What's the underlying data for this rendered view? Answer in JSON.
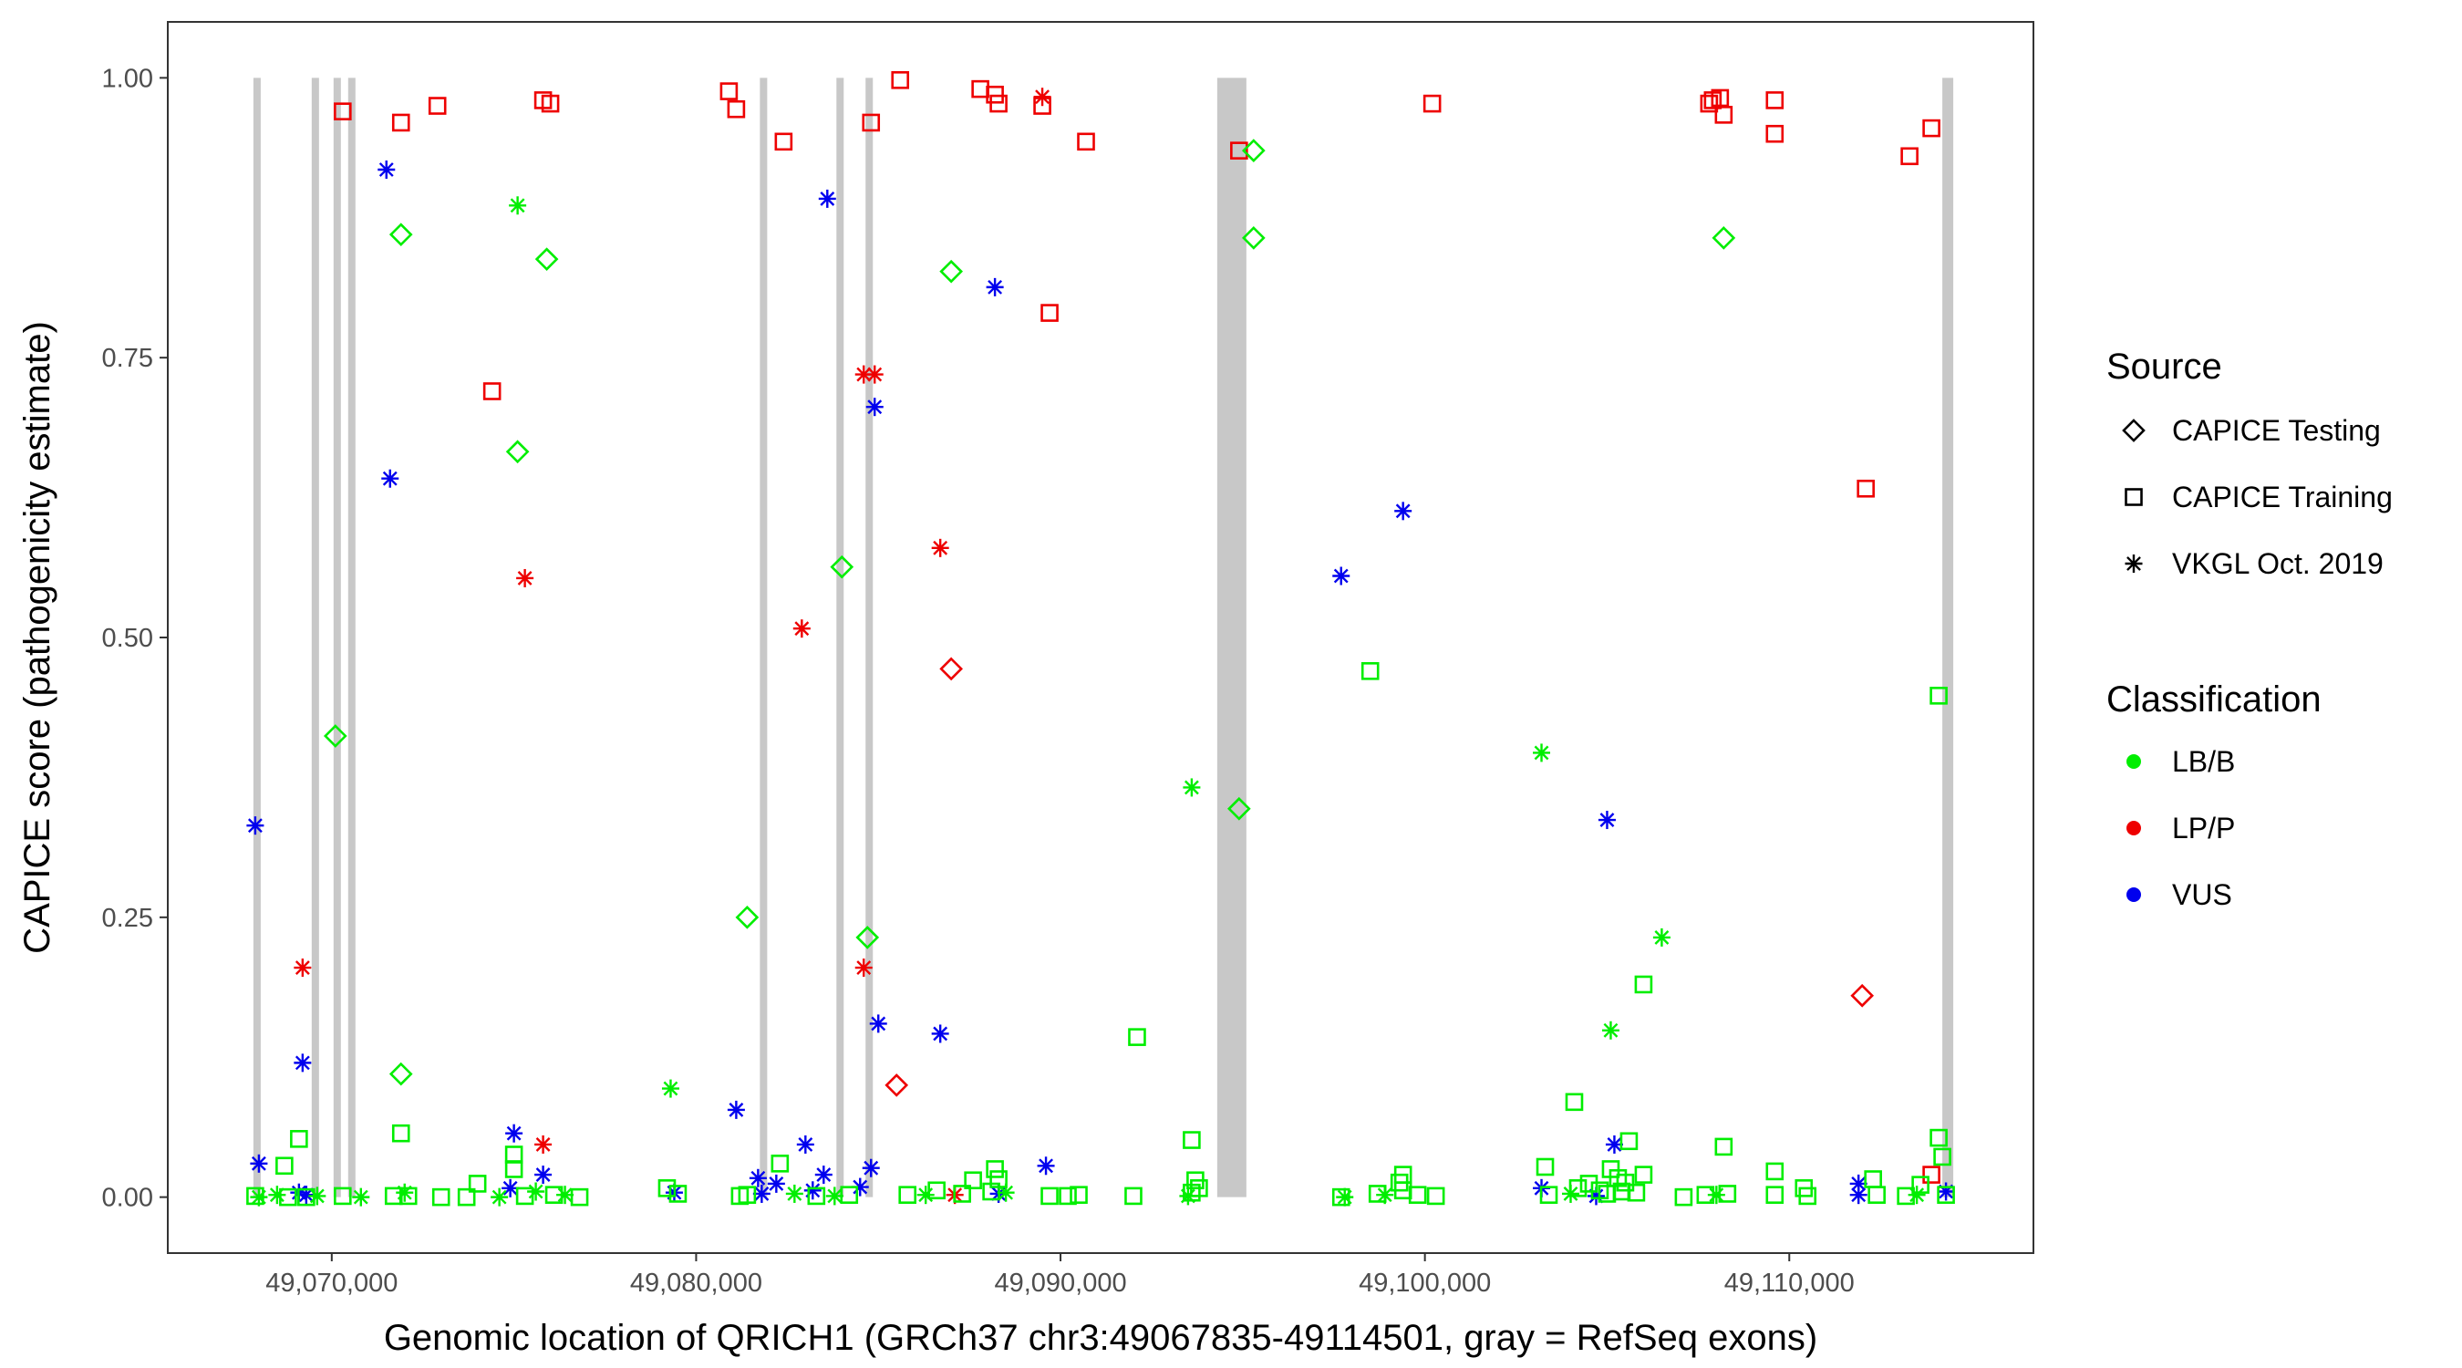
{
  "chart_data": {
    "type": "scatter",
    "xlabel": "Genomic location of QRICH1 (GRCh37 chr3:49067835-49114501, gray = RefSeq exons)",
    "ylabel": "CAPICE score (pathogenicity estimate)",
    "xlim": [
      49065500,
      49116700
    ],
    "ylim": [
      -0.05,
      1.05
    ],
    "x_ticks": [
      49070000,
      49080000,
      49090000,
      49100000,
      49110000
    ],
    "x_tick_labels": [
      "49,070,000",
      "49,080,000",
      "49,090,000",
      "49,100,000",
      "49,110,000"
    ],
    "y_ticks": [
      0,
      0.25,
      0.5,
      0.75,
      1
    ],
    "y_tick_labels": [
      "0.00",
      "0.25",
      "0.50",
      "0.75",
      "1.00"
    ],
    "grid": false,
    "legend_position": "right",
    "exon_color": "#c8c8c8",
    "exons": [
      [
        49067850,
        49068050
      ],
      [
        49069450,
        49069650
      ],
      [
        49070050,
        49070250
      ],
      [
        49070450,
        49070650
      ],
      [
        49081750,
        49081950
      ],
      [
        49083850,
        49084050
      ],
      [
        49084650,
        49084850
      ],
      [
        49094300,
        49095100
      ],
      [
        49114200,
        49114500
      ]
    ],
    "legends": [
      {
        "title": "Source",
        "items": [
          {
            "label": "CAPICE Testing",
            "shape": "diamond"
          },
          {
            "label": "CAPICE Training",
            "shape": "square"
          },
          {
            "label": "VKGL Oct. 2019",
            "shape": "asterisk"
          }
        ]
      },
      {
        "title": "Classification",
        "items": [
          {
            "label": "LB/B",
            "color": "#00ee00"
          },
          {
            "label": "LP/P",
            "color": "#ee0000"
          },
          {
            "label": "VUS",
            "color": "#0000ee"
          }
        ]
      }
    ],
    "series": [
      {
        "source": "CAPICE Training",
        "classification": "LP/P",
        "points": [
          [
            49070300,
            0.97
          ],
          [
            49071900,
            0.96
          ],
          [
            49072900,
            0.975
          ],
          [
            49075800,
            0.98
          ],
          [
            49076000,
            0.977
          ],
          [
            49080900,
            0.988
          ],
          [
            49081100,
            0.972
          ],
          [
            49082400,
            0.943
          ],
          [
            49084800,
            0.96
          ],
          [
            49085600,
            0.998
          ],
          [
            49087800,
            0.99
          ],
          [
            49088200,
            0.985
          ],
          [
            49088300,
            0.977
          ],
          [
            49089500,
            0.975
          ],
          [
            49090700,
            0.943
          ],
          [
            49094900,
            0.935
          ],
          [
            49100200,
            0.977
          ],
          [
            49107800,
            0.977
          ],
          [
            49107900,
            0.98
          ],
          [
            49108100,
            0.982
          ],
          [
            49108200,
            0.967
          ],
          [
            49109600,
            0.98
          ],
          [
            49109600,
            0.95
          ],
          [
            49113300,
            0.93
          ],
          [
            49113900,
            0.955
          ],
          [
            49074400,
            0.72
          ],
          [
            49089700,
            0.79
          ],
          [
            49112100,
            0.633
          ],
          [
            49113900,
            0.02
          ]
        ]
      },
      {
        "source": "CAPICE Testing",
        "classification": "LP/P",
        "points": [
          [
            49087000,
            0.472
          ],
          [
            49085500,
            0.1
          ],
          [
            49112000,
            0.18
          ]
        ]
      },
      {
        "source": "VKGL Oct. 2019",
        "classification": "LP/P",
        "points": [
          [
            49089500,
            0.983
          ],
          [
            49084600,
            0.735
          ],
          [
            49084900,
            0.735
          ],
          [
            49086700,
            0.58
          ],
          [
            49075300,
            0.553
          ],
          [
            49082900,
            0.508
          ],
          [
            49069200,
            0.205
          ],
          [
            49084600,
            0.205
          ],
          [
            49075800,
            0.047
          ],
          [
            49087100,
            0.002
          ]
        ]
      },
      {
        "source": "VKGL Oct. 2019",
        "classification": "VUS",
        "points": [
          [
            49071500,
            0.918
          ],
          [
            49083600,
            0.892
          ],
          [
            49088200,
            0.813
          ],
          [
            49084900,
            0.706
          ],
          [
            49071600,
            0.642
          ],
          [
            49067900,
            0.332
          ],
          [
            49099400,
            0.613
          ],
          [
            49097700,
            0.555
          ],
          [
            49105000,
            0.337
          ],
          [
            49085000,
            0.155
          ],
          [
            49086700,
            0.146
          ],
          [
            49069200,
            0.12
          ],
          [
            49081100,
            0.078
          ],
          [
            49075000,
            0.057
          ],
          [
            49083000,
            0.047
          ],
          [
            49105200,
            0.047
          ],
          [
            49068000,
            0.03
          ],
          [
            49089600,
            0.028
          ],
          [
            49084800,
            0.026
          ],
          [
            49075800,
            0.02
          ],
          [
            49081700,
            0.017
          ],
          [
            49083500,
            0.02
          ],
          [
            49082200,
            0.012
          ],
          [
            49079400,
            0.004
          ],
          [
            49069100,
            0.004
          ],
          [
            49069300,
            0.002
          ],
          [
            49074900,
            0.008
          ],
          [
            49084500,
            0.009
          ],
          [
            49088300,
            0.003
          ],
          [
            49103200,
            0.008
          ],
          [
            49104700,
            0.001
          ],
          [
            49111900,
            0.012
          ],
          [
            49114300,
            0.005
          ],
          [
            49081800,
            0.003
          ],
          [
            49083200,
            0.006
          ],
          [
            49111900,
            0.002
          ]
        ]
      },
      {
        "source": "VKGL Oct. 2019",
        "classification": "LB/B",
        "points": [
          [
            49075100,
            0.886
          ],
          [
            49093600,
            0.366
          ],
          [
            49103200,
            0.397
          ],
          [
            49106500,
            0.232
          ],
          [
            49105100,
            0.149
          ],
          [
            49079300,
            0.097
          ],
          [
            49068000,
            0.0
          ],
          [
            49068500,
            0.002
          ],
          [
            49069600,
            0.001
          ],
          [
            49070800,
            0.0
          ],
          [
            49072000,
            0.004
          ],
          [
            49074600,
            0.0
          ],
          [
            49075600,
            0.005
          ],
          [
            49076400,
            0.002
          ],
          [
            49082700,
            0.003
          ],
          [
            49083800,
            0.001
          ],
          [
            49086300,
            0.002
          ],
          [
            49088500,
            0.004
          ],
          [
            49093500,
            0.001
          ],
          [
            49097800,
            0.0
          ],
          [
            49098900,
            0.002
          ],
          [
            49104000,
            0.003
          ],
          [
            49108000,
            0.002
          ],
          [
            49113500,
            0.002
          ]
        ]
      },
      {
        "source": "CAPICE Testing",
        "classification": "LB/B",
        "points": [
          [
            49071900,
            0.86
          ],
          [
            49075900,
            0.838
          ],
          [
            49075100,
            0.666
          ],
          [
            49084000,
            0.563
          ],
          [
            49087000,
            0.827
          ],
          [
            49095300,
            0.935
          ],
          [
            49095300,
            0.857
          ],
          [
            49108200,
            0.857
          ],
          [
            49070100,
            0.412
          ],
          [
            49081400,
            0.25
          ],
          [
            49084700,
            0.232
          ],
          [
            49094900,
            0.347
          ],
          [
            49071900,
            0.11
          ]
        ]
      },
      {
        "source": "CAPICE Training",
        "classification": "LB/B",
        "points": [
          [
            49098500,
            0.47
          ],
          [
            49114100,
            0.448
          ],
          [
            49106000,
            0.19
          ],
          [
            49092100,
            0.143
          ],
          [
            49104100,
            0.085
          ],
          [
            49069100,
            0.052
          ],
          [
            49071900,
            0.057
          ],
          [
            49093600,
            0.051
          ],
          [
            49105600,
            0.05
          ],
          [
            49108200,
            0.045
          ],
          [
            49114100,
            0.053
          ],
          [
            49114200,
            0.036
          ],
          [
            49068700,
            0.028
          ],
          [
            49075000,
            0.038
          ],
          [
            49075000,
            0.025
          ],
          [
            49082300,
            0.03
          ],
          [
            49088200,
            0.025
          ],
          [
            49099400,
            0.02
          ],
          [
            49103300,
            0.027
          ],
          [
            49105100,
            0.025
          ],
          [
            49106000,
            0.02
          ],
          [
            49109600,
            0.023
          ],
          [
            49112300,
            0.016
          ],
          [
            49074000,
            0.012
          ],
          [
            49087600,
            0.015
          ],
          [
            49088300,
            0.016
          ],
          [
            49093700,
            0.015
          ],
          [
            49099300,
            0.013
          ],
          [
            49104500,
            0.012
          ],
          [
            49105300,
            0.017
          ],
          [
            49105500,
            0.013
          ],
          [
            49110400,
            0.008
          ],
          [
            49113600,
            0.011
          ],
          [
            49067900,
            0.001
          ],
          [
            49068800,
            0.0
          ],
          [
            49069300,
            0.0
          ],
          [
            49070300,
            0.001
          ],
          [
            49071700,
            0.001
          ],
          [
            49072100,
            0.001
          ],
          [
            49073000,
            0.0
          ],
          [
            49073700,
            0.0
          ],
          [
            49075300,
            0.001
          ],
          [
            49076100,
            0.002
          ],
          [
            49076800,
            0.0
          ],
          [
            49079200,
            0.008
          ],
          [
            49079500,
            0.003
          ],
          [
            49081200,
            0.001
          ],
          [
            49081400,
            0.002
          ],
          [
            49083300,
            0.001
          ],
          [
            49084200,
            0.002
          ],
          [
            49085800,
            0.002
          ],
          [
            49086600,
            0.006
          ],
          [
            49087300,
            0.003
          ],
          [
            49088100,
            0.005
          ],
          [
            49089700,
            0.001
          ],
          [
            49090200,
            0.001
          ],
          [
            49090500,
            0.002
          ],
          [
            49092000,
            0.001
          ],
          [
            49093600,
            0.004
          ],
          [
            49093800,
            0.008
          ],
          [
            49097700,
            0.0
          ],
          [
            49098700,
            0.003
          ],
          [
            49099400,
            0.006
          ],
          [
            49099800,
            0.002
          ],
          [
            49100300,
            0.001
          ],
          [
            49103400,
            0.002
          ],
          [
            49104200,
            0.008
          ],
          [
            49104800,
            0.006
          ],
          [
            49105000,
            0.003
          ],
          [
            49105400,
            0.005
          ],
          [
            49105800,
            0.004
          ],
          [
            49107100,
            0.0
          ],
          [
            49107700,
            0.002
          ],
          [
            49108300,
            0.003
          ],
          [
            49109600,
            0.002
          ],
          [
            49110500,
            0.001
          ],
          [
            49112400,
            0.002
          ],
          [
            49113200,
            0.001
          ],
          [
            49114300,
            0.002
          ]
        ]
      }
    ]
  }
}
